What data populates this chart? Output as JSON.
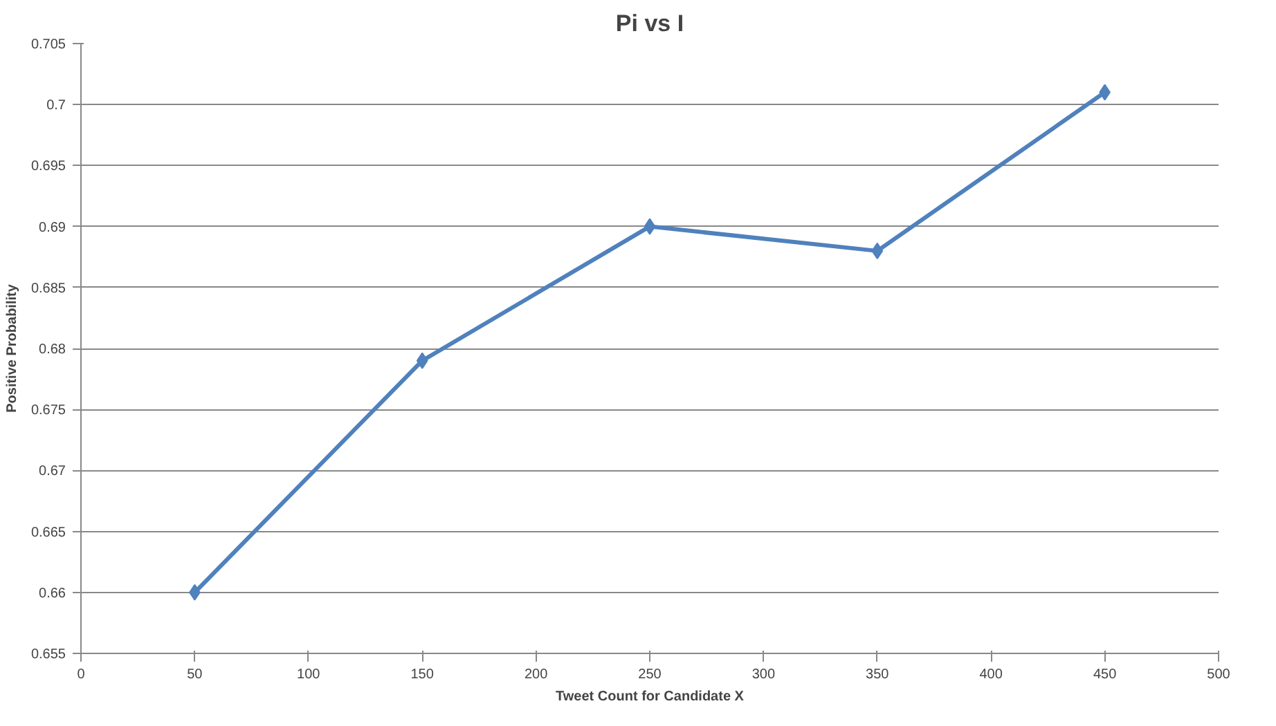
{
  "chart_data": {
    "type": "line",
    "title": "Pi vs I",
    "xlabel": "Tweet Count for Candidate X",
    "ylabel": "Positive Probability",
    "x": [
      50,
      150,
      250,
      350,
      450
    ],
    "series": [
      {
        "color": "#4f81bd",
        "values": [
          0.66,
          0.679,
          0.69,
          0.688,
          0.701
        ]
      }
    ],
    "xlim": [
      0,
      500
    ],
    "xticks": [
      0,
      50,
      100,
      150,
      200,
      250,
      300,
      350,
      400,
      450,
      500
    ],
    "ylim": [
      0.655,
      0.705
    ],
    "yticks": [
      0.655,
      0.66,
      0.665,
      0.67,
      0.675,
      0.68,
      0.685,
      0.69,
      0.695,
      0.7,
      0.705
    ],
    "grid": "y",
    "marker": "diamond",
    "line_style": "solid"
  }
}
